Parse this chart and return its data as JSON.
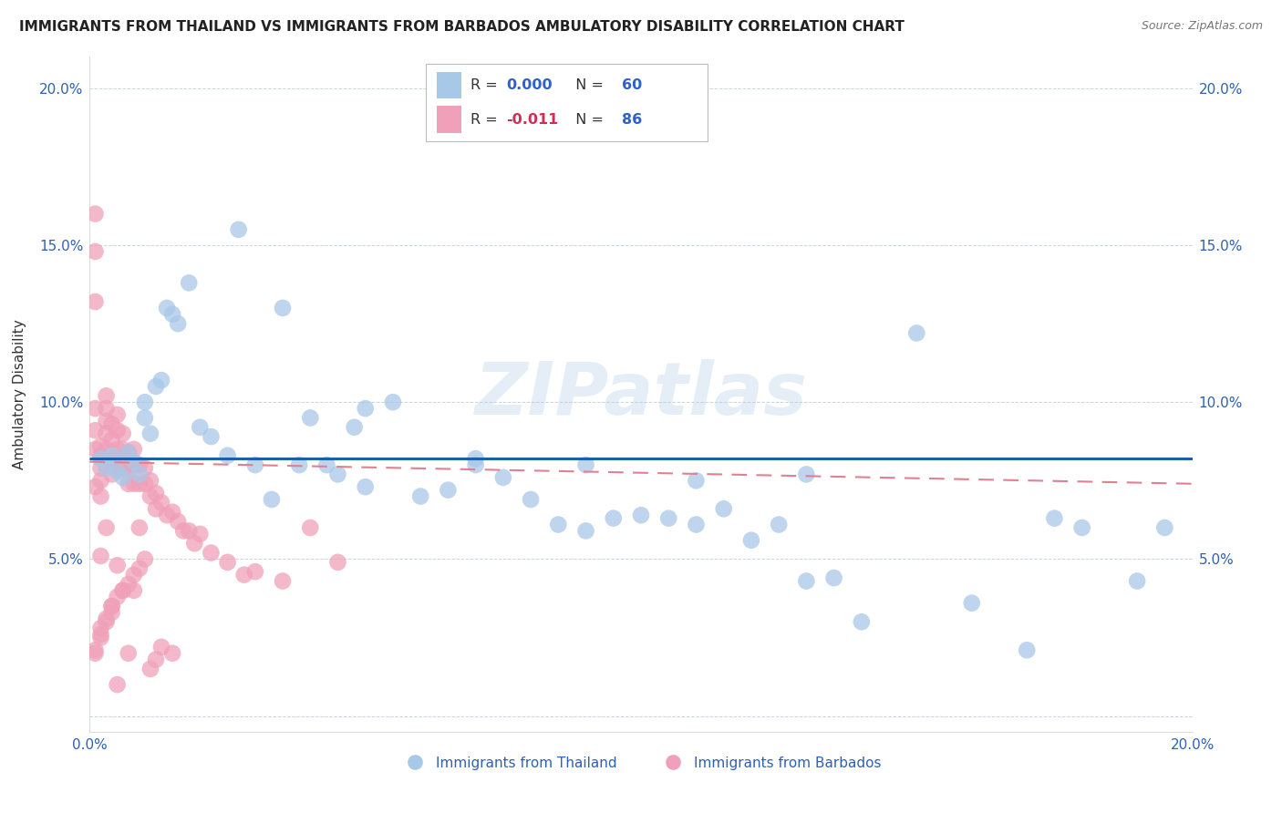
{
  "title": "IMMIGRANTS FROM THAILAND VS IMMIGRANTS FROM BARBADOS AMBULATORY DISABILITY CORRELATION CHART",
  "source": "Source: ZipAtlas.com",
  "ylabel": "Ambulatory Disability",
  "xlim": [
    0.0,
    0.2
  ],
  "ylim": [
    -0.005,
    0.21
  ],
  "yticks": [
    0.0,
    0.05,
    0.1,
    0.15,
    0.2
  ],
  "ytick_labels": [
    "",
    "5.0%",
    "10.0%",
    "15.0%",
    "20.0%"
  ],
  "xticks": [
    0.0,
    0.05,
    0.1,
    0.15,
    0.2
  ],
  "xtick_labels": [
    "0.0%",
    "",
    "",
    "",
    "20.0%"
  ],
  "legend_r1_pre": "R = ",
  "legend_r1_val": "0.000",
  "legend_n1_pre": "  N = ",
  "legend_n1_val": "60",
  "legend_r2_pre": "R = ",
  "legend_r2_val": "-0.011",
  "legend_n2_pre": "  N = ",
  "legend_n2_val": "86",
  "color_thailand": "#a8c8e8",
  "color_barbados": "#f0a0b8",
  "line_color_thailand": "#1a5fa8",
  "line_color_barbados": "#e08090",
  "watermark": "ZIPatlas",
  "thailand_line_y": [
    0.082,
    0.082
  ],
  "barbados_line_y": [
    0.081,
    0.074
  ],
  "thailand_x": [
    0.002,
    0.003,
    0.004,
    0.005,
    0.006,
    0.007,
    0.008,
    0.009,
    0.01,
    0.01,
    0.011,
    0.012,
    0.013,
    0.014,
    0.015,
    0.016,
    0.018,
    0.02,
    0.022,
    0.025,
    0.027,
    0.03,
    0.033,
    0.035,
    0.038,
    0.04,
    0.043,
    0.045,
    0.048,
    0.05,
    0.055,
    0.06,
    0.065,
    0.07,
    0.075,
    0.08,
    0.085,
    0.09,
    0.095,
    0.1,
    0.105,
    0.11,
    0.115,
    0.12,
    0.125,
    0.13,
    0.135,
    0.14,
    0.15,
    0.16,
    0.17,
    0.175,
    0.18,
    0.19,
    0.195,
    0.05,
    0.07,
    0.09,
    0.11,
    0.13
  ],
  "thailand_y": [
    0.082,
    0.079,
    0.083,
    0.078,
    0.076,
    0.084,
    0.081,
    0.077,
    0.1,
    0.095,
    0.09,
    0.105,
    0.107,
    0.13,
    0.128,
    0.125,
    0.138,
    0.092,
    0.089,
    0.083,
    0.155,
    0.08,
    0.069,
    0.13,
    0.08,
    0.095,
    0.08,
    0.077,
    0.092,
    0.098,
    0.1,
    0.07,
    0.072,
    0.08,
    0.076,
    0.069,
    0.061,
    0.059,
    0.063,
    0.064,
    0.063,
    0.061,
    0.066,
    0.056,
    0.061,
    0.043,
    0.044,
    0.03,
    0.122,
    0.036,
    0.021,
    0.063,
    0.06,
    0.043,
    0.06,
    0.073,
    0.082,
    0.08,
    0.075,
    0.077
  ],
  "barbados_x": [
    0.001,
    0.001,
    0.001,
    0.001,
    0.001,
    0.001,
    0.001,
    0.002,
    0.002,
    0.002,
    0.002,
    0.002,
    0.002,
    0.003,
    0.003,
    0.003,
    0.003,
    0.003,
    0.003,
    0.003,
    0.004,
    0.004,
    0.004,
    0.004,
    0.004,
    0.005,
    0.005,
    0.005,
    0.005,
    0.005,
    0.005,
    0.006,
    0.006,
    0.006,
    0.006,
    0.007,
    0.007,
    0.007,
    0.007,
    0.008,
    0.008,
    0.008,
    0.008,
    0.009,
    0.009,
    0.009,
    0.01,
    0.01,
    0.011,
    0.011,
    0.012,
    0.012,
    0.013,
    0.014,
    0.015,
    0.016,
    0.017,
    0.018,
    0.019,
    0.02,
    0.022,
    0.025,
    0.028,
    0.03,
    0.035,
    0.04,
    0.045,
    0.001,
    0.001,
    0.002,
    0.002,
    0.003,
    0.004,
    0.004,
    0.005,
    0.006,
    0.007,
    0.008,
    0.009,
    0.01,
    0.011,
    0.012,
    0.013,
    0.015,
    0.002,
    0.003
  ],
  "barbados_y": [
    0.16,
    0.148,
    0.132,
    0.098,
    0.091,
    0.085,
    0.02,
    0.086,
    0.083,
    0.079,
    0.075,
    0.07,
    0.025,
    0.102,
    0.098,
    0.094,
    0.09,
    0.085,
    0.08,
    0.03,
    0.093,
    0.088,
    0.082,
    0.077,
    0.035,
    0.096,
    0.091,
    0.085,
    0.079,
    0.048,
    0.01,
    0.09,
    0.085,
    0.079,
    0.04,
    0.084,
    0.079,
    0.074,
    0.02,
    0.085,
    0.079,
    0.074,
    0.04,
    0.08,
    0.074,
    0.06,
    0.079,
    0.074,
    0.075,
    0.07,
    0.071,
    0.066,
    0.068,
    0.064,
    0.065,
    0.062,
    0.059,
    0.059,
    0.055,
    0.058,
    0.052,
    0.049,
    0.045,
    0.046,
    0.043,
    0.06,
    0.049,
    0.073,
    0.021,
    0.026,
    0.028,
    0.031,
    0.033,
    0.035,
    0.038,
    0.04,
    0.042,
    0.045,
    0.047,
    0.05,
    0.015,
    0.018,
    0.022,
    0.02,
    0.051,
    0.06
  ]
}
